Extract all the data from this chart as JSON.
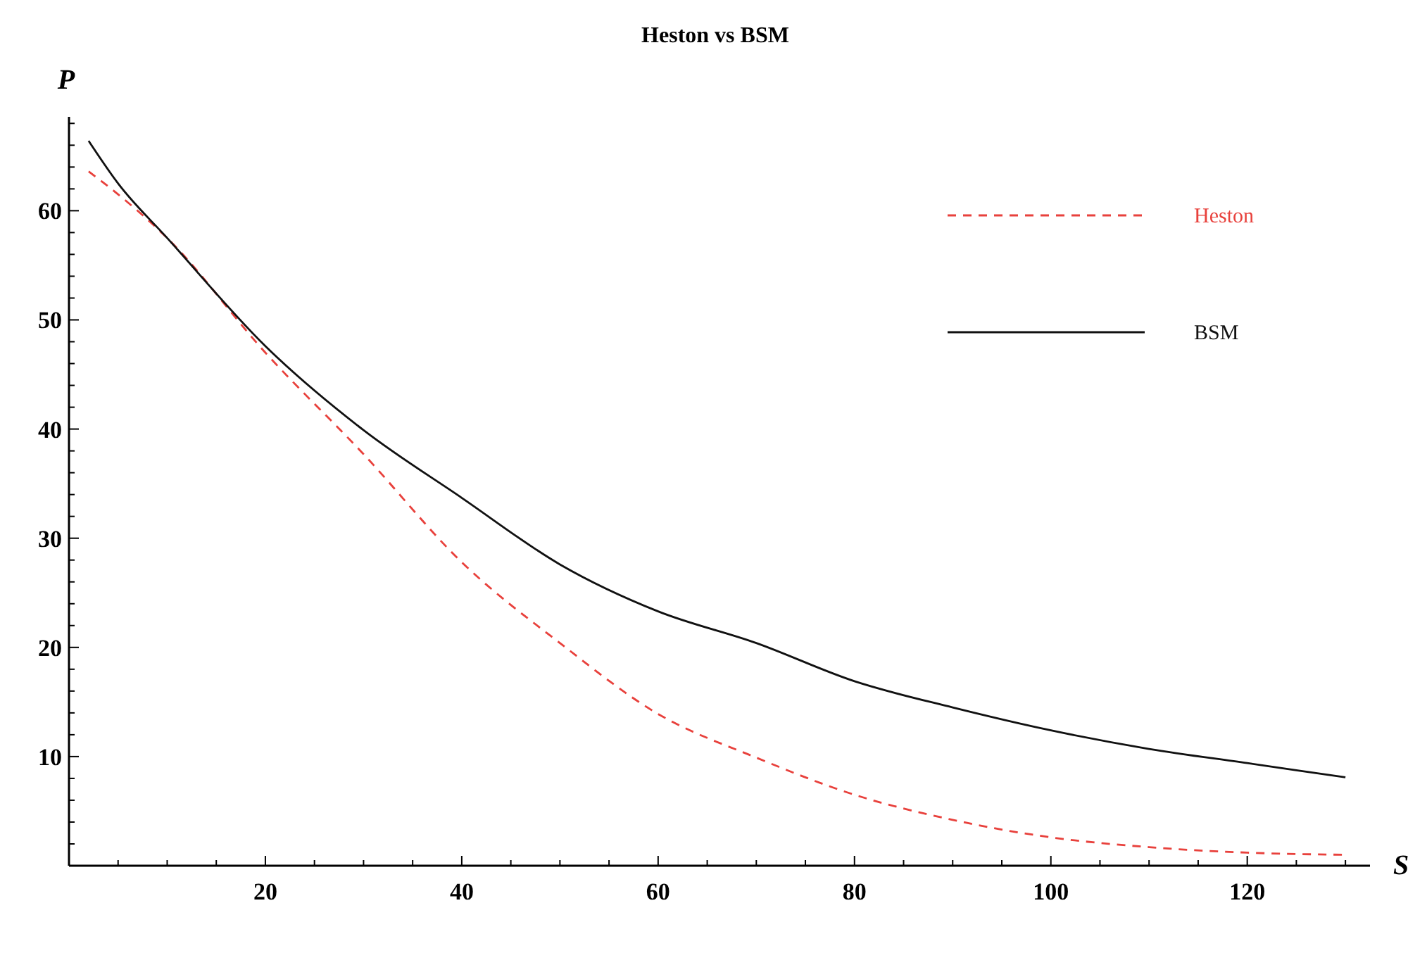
{
  "chart_data": {
    "type": "line",
    "title": "Heston vs BSM",
    "xlabel": "S",
    "ylabel": "P",
    "xlim": [
      0,
      132.5
    ],
    "ylim": [
      0,
      68.6
    ],
    "xticks": [
      {
        "value": 5,
        "label": null
      },
      {
        "value": 10,
        "label": null
      },
      {
        "value": 15,
        "label": null
      },
      20,
      {
        "value": 25,
        "label": null
      },
      {
        "value": 30,
        "label": null
      },
      {
        "value": 35,
        "label": null
      },
      40,
      {
        "value": 45,
        "label": null
      },
      {
        "value": 50,
        "label": null
      },
      {
        "value": 55,
        "label": null
      },
      60,
      {
        "value": 65,
        "label": null
      },
      {
        "value": 70,
        "label": null
      },
      {
        "value": 75,
        "label": null
      },
      80,
      {
        "value": 85,
        "label": null
      },
      {
        "value": 90,
        "label": null
      },
      {
        "value": 95,
        "label": null
      },
      100,
      {
        "value": 105,
        "label": null
      },
      {
        "value": 110,
        "label": null
      },
      {
        "value": 115,
        "label": null
      },
      120,
      {
        "value": 125,
        "label": null
      },
      {
        "value": 130,
        "label": null
      }
    ],
    "yticks": [
      {
        "value": 2,
        "label": null
      },
      {
        "value": 4,
        "label": null
      },
      {
        "value": 6,
        "label": null
      },
      {
        "value": 8,
        "label": null
      },
      10,
      {
        "value": 12,
        "label": null
      },
      {
        "value": 14,
        "label": null
      },
      {
        "value": 16,
        "label": null
      },
      {
        "value": 18,
        "label": null
      },
      20,
      {
        "value": 22,
        "label": null
      },
      {
        "value": 24,
        "label": null
      },
      {
        "value": 26,
        "label": null
      },
      {
        "value": 28,
        "label": null
      },
      30,
      {
        "value": 32,
        "label": null
      },
      {
        "value": 34,
        "label": null
      },
      {
        "value": 36,
        "label": null
      },
      {
        "value": 38,
        "label": null
      },
      40,
      {
        "value": 42,
        "label": null
      },
      {
        "value": 44,
        "label": null
      },
      {
        "value": 46,
        "label": null
      },
      {
        "value": 48,
        "label": null
      },
      50,
      {
        "value": 52,
        "label": null
      },
      {
        "value": 54,
        "label": null
      },
      {
        "value": 56,
        "label": null
      },
      {
        "value": 58,
        "label": null
      },
      60,
      {
        "value": 62,
        "label": null
      },
      {
        "value": 64,
        "label": null
      },
      {
        "value": 66,
        "label": null
      },
      {
        "value": 68,
        "label": null
      }
    ],
    "x": [
      2,
      5,
      10,
      20,
      30,
      40,
      50,
      60,
      70,
      80,
      90,
      100,
      110,
      120,
      130
    ],
    "series": [
      {
        "name": "Heston",
        "color": "#e8413c",
        "line_style": "dashed",
        "values": [
          63.6,
          61.5,
          57.5,
          47.0,
          37.7,
          27.8,
          20.4,
          13.9,
          9.9,
          6.5,
          4.2,
          2.6,
          1.7,
          1.2,
          1.0
        ]
      },
      {
        "name": "BSM",
        "color": "#111111",
        "line_style": "solid",
        "values": [
          66.4,
          62.5,
          57.5,
          47.6,
          39.9,
          33.7,
          27.6,
          23.3,
          20.4,
          16.9,
          14.5,
          12.4,
          10.7,
          9.4,
          8.1
        ]
      }
    ],
    "legend": "top right",
    "grid": false,
    "marker": "none"
  }
}
